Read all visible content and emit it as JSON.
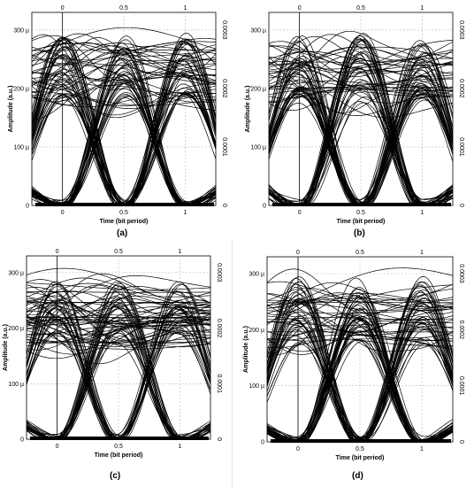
{
  "figure": {
    "panel_labels": [
      "(a)",
      "(b)",
      "(c)",
      "(d)"
    ]
  },
  "chart_data": [
    {
      "type": "line",
      "panel": "(a)",
      "xlabel": "Time (bit period)",
      "ylabel": "Amplitude (a.u.)",
      "xlim": [
        -0.25,
        1.25
      ],
      "ylim": [
        0,
        0.00033
      ],
      "x_ticks_bottom": [
        "0",
        "0.5",
        "1"
      ],
      "x_ticks_top": [
        "0",
        "0.5",
        "1"
      ],
      "y_ticks_left": [
        "0",
        "100 µ",
        "200 µ",
        "300 µ"
      ],
      "y_ticks_right": [
        "0",
        "0.0001",
        "0.0002",
        "0.0003"
      ],
      "grid": true,
      "series": [
        {
          "x": [
            -0.25,
            0,
            0.25,
            0.5,
            0.75,
            1,
            1.25
          ],
          "y": [
            3e-05,
            0.00013,
            0.00022,
            0.00025,
            0.00022,
            0.00013,
            3e-05
          ]
        },
        {
          "x": [
            -0.25,
            0,
            0.25,
            0.5,
            0.75,
            1,
            1.25
          ],
          "y": [
            0.00025,
            0.00013,
            4e-05,
            1e-06,
            4e-05,
            0.00013,
            0.00025
          ]
        },
        {
          "x": [
            -0.25,
            0,
            0.25,
            0.5,
            0.75,
            1,
            1.25
          ],
          "y": [
            0.00028,
            0.00026,
            0.00027,
            0.00025,
            0.00026,
            0.00027,
            0.00028
          ]
        }
      ]
    },
    {
      "type": "line",
      "panel": "(b)",
      "xlabel": "Time (bit period)",
      "ylabel": "Amplitude (a.u.)",
      "xlim": [
        -0.25,
        1.25
      ],
      "ylim": [
        0,
        0.00033
      ],
      "x_ticks_bottom": [
        "0",
        "0.5",
        "1"
      ],
      "x_ticks_top": [
        "0",
        "0.5",
        "1"
      ],
      "y_ticks_left": [
        "0",
        "100 µ",
        "200 µ",
        "300 µ"
      ],
      "y_ticks_right": [
        "0",
        "0.0001",
        "0.0002",
        "0.0003"
      ],
      "grid": true,
      "series": [
        {
          "x": [
            -0.25,
            0,
            0.25,
            0.5,
            0.75,
            1,
            1.25
          ],
          "y": [
            3e-05,
            0.00013,
            0.00022,
            0.00026,
            0.00022,
            0.00013,
            3e-05
          ]
        },
        {
          "x": [
            -0.25,
            0,
            0.25,
            0.5,
            0.75,
            1,
            1.25
          ],
          "y": [
            0.00026,
            0.00013,
            4e-05,
            1e-06,
            4e-05,
            0.00013,
            0.00026
          ]
        }
      ]
    },
    {
      "type": "line",
      "panel": "(c)",
      "xlabel": "Time (bit period)",
      "ylabel": "Amplitude (a.u.)",
      "xlim": [
        -0.25,
        1.25
      ],
      "ylim": [
        0,
        0.00033
      ],
      "x_ticks_bottom": [
        "0",
        "0.5",
        "1"
      ],
      "x_ticks_top": [
        "0",
        "0.5",
        "1"
      ],
      "y_ticks_left": [
        "0",
        "100 µ",
        "200 µ",
        "300 µ"
      ],
      "y_ticks_right": [
        "0",
        "0.0001",
        "0.0002",
        "0.0003"
      ],
      "grid": true,
      "series": [
        {
          "x": [
            -0.25,
            0,
            0.25,
            0.5,
            0.75,
            1,
            1.25
          ],
          "y": [
            3e-05,
            0.00012,
            0.00022,
            0.00025,
            0.00022,
            0.00012,
            3e-05
          ]
        },
        {
          "x": [
            -0.25,
            0,
            0.25,
            0.5,
            0.75,
            1,
            1.25
          ],
          "y": [
            0.00025,
            0.00012,
            4e-05,
            1e-06,
            4e-05,
            0.00012,
            0.00025
          ]
        }
      ]
    },
    {
      "type": "line",
      "panel": "(d)",
      "xlabel": "Time (bit period)",
      "ylabel": "Amplitude (a.u.)",
      "xlim": [
        -0.25,
        1.25
      ],
      "ylim": [
        0,
        0.00033
      ],
      "x_ticks_bottom": [
        "0",
        "0.5",
        "1"
      ],
      "x_ticks_top": [
        "0",
        "0.5",
        "1"
      ],
      "y_ticks_left": [
        "0",
        "100 µ",
        "200 µ",
        "300 µ"
      ],
      "y_ticks_right": [
        "0",
        "0.0001",
        "0.0002",
        "0.0003"
      ],
      "grid": true,
      "series": [
        {
          "x": [
            -0.25,
            0,
            0.25,
            0.5,
            0.75,
            1,
            1.25
          ],
          "y": [
            3e-05,
            0.00012,
            0.00021,
            0.00024,
            0.00021,
            0.00012,
            3e-05
          ]
        },
        {
          "x": [
            -0.25,
            0,
            0.25,
            0.5,
            0.75,
            1,
            1.25
          ],
          "y": [
            0.00024,
            0.00012,
            4e-05,
            1e-06,
            4e-05,
            0.00012,
            0.00024
          ]
        }
      ]
    }
  ]
}
